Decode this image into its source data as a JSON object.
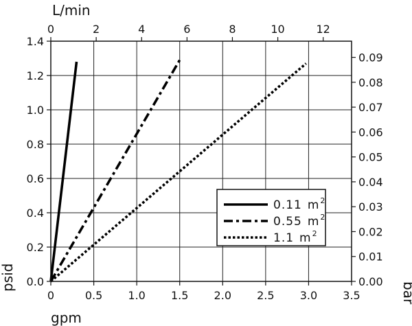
{
  "chart_data": {
    "type": "line",
    "title": "",
    "xlabel": "gpm",
    "ylabel": "psid",
    "x2label": "L/min",
    "y2label": "bar",
    "xlim": [
      0,
      3.5
    ],
    "ylim": [
      0,
      1.4
    ],
    "x2lim": [
      0,
      13.25
    ],
    "y2lim": [
      0,
      0.0965
    ],
    "grid": true,
    "x_ticks": [
      0,
      0.5,
      1.0,
      1.5,
      2.0,
      2.5,
      3.0,
      3.5
    ],
    "x_tick_labels": [
      "0",
      "0.5",
      "1.0",
      "1.5",
      "2.0",
      "2.5",
      "3.0",
      "3.5"
    ],
    "y_ticks": [
      0,
      0.2,
      0.4,
      0.6,
      0.8,
      1.0,
      1.2,
      1.4
    ],
    "y_tick_labels": [
      "0.0",
      "0.2",
      "0.4",
      "0.6",
      "0.8",
      "1.0",
      "1.2",
      "1.4"
    ],
    "x2_ticks": [
      0,
      2,
      4,
      6,
      8,
      10,
      12
    ],
    "x2_tick_labels": [
      "0",
      "2",
      "4",
      "6",
      "8",
      "10",
      "12"
    ],
    "y2_ticks": [
      0,
      0.01,
      0.02,
      0.03,
      0.04,
      0.05,
      0.06,
      0.07,
      0.08,
      0.09
    ],
    "y2_tick_labels": [
      "0.00",
      "0.01",
      "0.02",
      "0.03",
      "0.04",
      "0.05",
      "0.06",
      "0.07",
      "0.08",
      "0.09"
    ],
    "legend_position": "bottom-right",
    "series": [
      {
        "name": "0.11",
        "unit": "m",
        "exponent": "2",
        "style": "solid",
        "x": [
          0,
          0.3
        ],
        "y": [
          0,
          1.28
        ]
      },
      {
        "name": "0.55",
        "unit": "m",
        "exponent": "2",
        "style": "dashdot",
        "x": [
          0,
          1.5
        ],
        "y": [
          0,
          1.29
        ]
      },
      {
        "name": "1.1",
        "unit": "m",
        "exponent": "2",
        "style": "dotted",
        "x": [
          0,
          2.97
        ],
        "y": [
          0,
          1.27
        ]
      }
    ]
  }
}
